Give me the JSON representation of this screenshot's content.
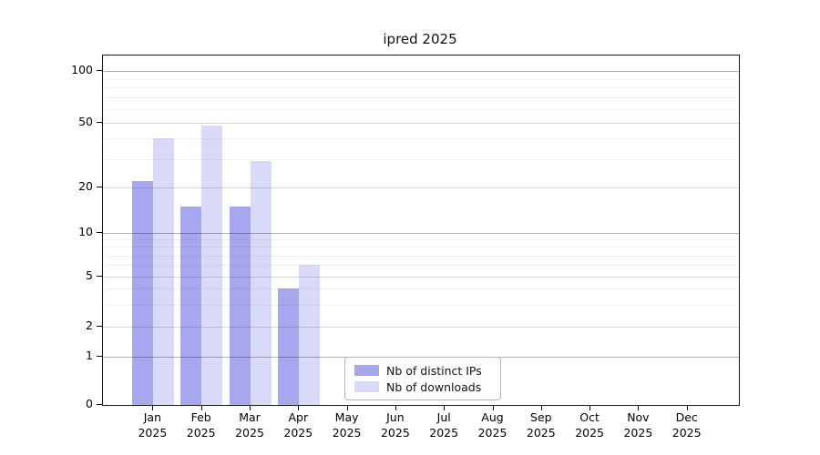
{
  "chart_data": {
    "type": "bar",
    "title": "ipred 2025",
    "categories": [
      "Jan",
      "Feb",
      "Mar",
      "Apr",
      "May",
      "Jun",
      "Jul",
      "Aug",
      "Sep",
      "Oct",
      "Nov",
      "Dec"
    ],
    "x_year_label": "2025",
    "series": [
      {
        "name": "Nb of distinct IPs",
        "color": "#a7a7f0",
        "values": [
          22,
          15,
          15,
          4,
          0,
          0,
          0,
          0,
          0,
          0,
          0,
          0
        ]
      },
      {
        "name": "Nb of downloads",
        "color": "#d9d9f8",
        "values": [
          40,
          48,
          29,
          6,
          0,
          0,
          0,
          0,
          0,
          0,
          0,
          0
        ]
      }
    ],
    "y_axis": {
      "scale": "log-like",
      "tick_values": [
        0,
        1,
        2,
        5,
        10,
        20,
        50,
        100
      ],
      "tick_labels": [
        "0",
        "1",
        "2",
        "5",
        "10",
        "20",
        "50",
        "100"
      ],
      "decade_gridlines": [
        1,
        10,
        100
      ],
      "minor_gridlines": [
        3,
        4,
        6,
        7,
        8,
        9,
        30,
        40,
        60,
        70,
        80,
        90
      ]
    },
    "legend": {
      "position": "lower-center",
      "entries": [
        "Nb of distinct IPs",
        "Nb of downloads"
      ]
    },
    "grid": true,
    "background_color": "#ffffff",
    "axis_color": "#1a1a1a"
  }
}
